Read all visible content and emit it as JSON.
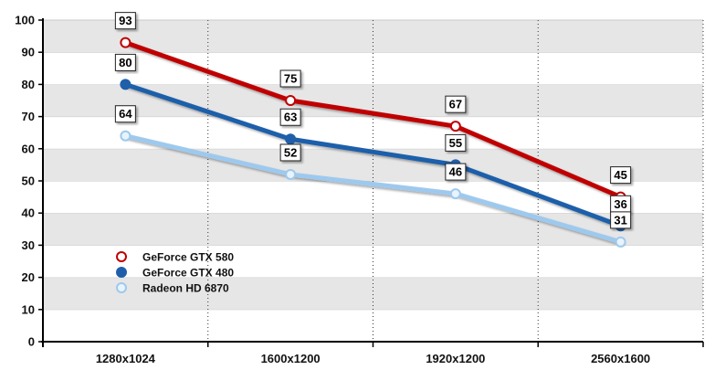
{
  "chart_data": {
    "type": "line",
    "categories": [
      "1280x1024",
      "1600x1200",
      "1920x1200",
      "2560x1600"
    ],
    "ylim": [
      0,
      100
    ],
    "yticks": [
      0,
      10,
      20,
      30,
      40,
      50,
      60,
      70,
      80,
      90,
      100
    ],
    "grid": true,
    "legend_position": "bottom-left",
    "series": [
      {
        "name": "GeForce GTX 580",
        "values": [
          93,
          75,
          67,
          45
        ],
        "color": "#c00000",
        "fill": "#ffffff"
      },
      {
        "name": "GeForce GTX 480",
        "values": [
          80,
          63,
          55,
          36
        ],
        "color": "#1f5faa",
        "fill": "#1f5faa"
      },
      {
        "name": "Radeon HD 6870",
        "values": [
          64,
          52,
          46,
          31
        ],
        "color": "#9ec9ee",
        "fill": "#e8f3fc"
      }
    ]
  }
}
